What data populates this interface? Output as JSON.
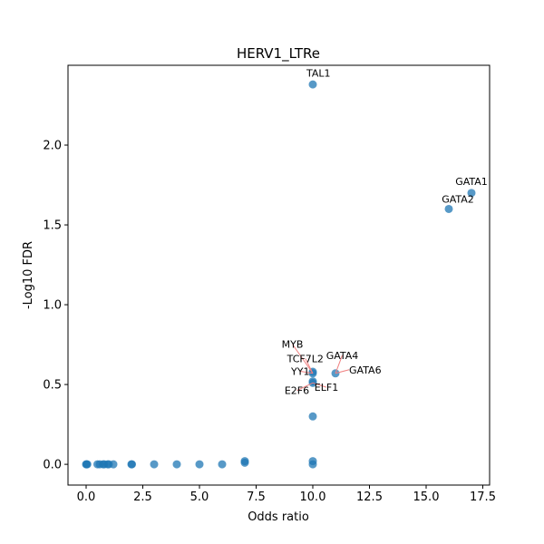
{
  "chart_data": {
    "type": "scatter",
    "title": "HERV1_LTRe",
    "xlabel": "Odds ratio",
    "ylabel": "-Log10 FDR",
    "xlim": [
      -0.8,
      17.8
    ],
    "ylim": [
      -0.13,
      2.5
    ],
    "xticks": [
      0.0,
      2.5,
      5.0,
      7.5,
      10.0,
      12.5,
      15.0,
      17.5
    ],
    "xtick_labels": [
      "0.0",
      "2.5",
      "5.0",
      "7.5",
      "10.0",
      "12.5",
      "15.0",
      "17.5"
    ],
    "yticks": [
      0.0,
      0.5,
      1.0,
      1.5,
      2.0
    ],
    "ytick_labels": [
      "0.0",
      "0.5",
      "1.0",
      "1.5",
      "2.0"
    ],
    "grid": false,
    "point_color": "#1f77b4",
    "arrow_color": "#f08080",
    "points": [
      {
        "x": 0.0,
        "y": 0.0
      },
      {
        "x": 0.02,
        "y": 0.0
      },
      {
        "x": 0.05,
        "y": 0.0
      },
      {
        "x": 0.5,
        "y": 0.0
      },
      {
        "x": 0.6,
        "y": 0.0
      },
      {
        "x": 0.75,
        "y": 0.0
      },
      {
        "x": 0.8,
        "y": 0.0
      },
      {
        "x": 0.95,
        "y": 0.0
      },
      {
        "x": 1.0,
        "y": 0.0
      },
      {
        "x": 1.2,
        "y": 0.0
      },
      {
        "x": 2.0,
        "y": 0.0
      },
      {
        "x": 2.02,
        "y": 0.0
      },
      {
        "x": 3.0,
        "y": 0.0
      },
      {
        "x": 4.0,
        "y": 0.0
      },
      {
        "x": 5.0,
        "y": 0.0
      },
      {
        "x": 6.0,
        "y": 0.0
      },
      {
        "x": 7.0,
        "y": 0.01
      },
      {
        "x": 7.0,
        "y": 0.02
      },
      {
        "x": 10.0,
        "y": 0.0
      },
      {
        "x": 10.0,
        "y": 0.02
      },
      {
        "x": 10.0,
        "y": 0.3
      },
      {
        "x": 10.0,
        "y": 0.51
      },
      {
        "x": 10.0,
        "y": 0.52
      },
      {
        "x": 10.0,
        "y": 0.57
      },
      {
        "x": 10.0,
        "y": 0.58
      },
      {
        "x": 11.0,
        "y": 0.57
      },
      {
        "x": 10.0,
        "y": 2.38
      },
      {
        "x": 16.0,
        "y": 1.6
      },
      {
        "x": 17.0,
        "y": 1.7
      }
    ],
    "annotations": [
      {
        "text": "TAL1",
        "x": 10.0,
        "y": 2.38,
        "tx": 10.25,
        "ty": 2.43,
        "anchor": "middle",
        "arrow": false
      },
      {
        "text": "GATA1",
        "x": 17.0,
        "y": 1.7,
        "tx": 17.0,
        "ty": 1.75,
        "anchor": "middle",
        "arrow": false
      },
      {
        "text": "GATA2",
        "x": 16.0,
        "y": 1.6,
        "tx": 16.4,
        "ty": 1.64,
        "anchor": "middle",
        "arrow": false
      },
      {
        "text": "MYB",
        "x": 10.0,
        "y": 0.57,
        "tx": 9.1,
        "ty": 0.73,
        "anchor": "middle",
        "arrow": true
      },
      {
        "text": "TCF7L2",
        "x": 10.0,
        "y": 0.57,
        "tx": 9.67,
        "ty": 0.64,
        "anchor": "middle",
        "arrow": true
      },
      {
        "text": "GATA4",
        "x": 11.0,
        "y": 0.57,
        "tx": 11.3,
        "ty": 0.66,
        "anchor": "middle",
        "arrow": true
      },
      {
        "text": "YY1",
        "x": 10.0,
        "y": 0.57,
        "tx": 9.45,
        "ty": 0.56,
        "anchor": "middle",
        "arrow": true
      },
      {
        "text": "GATA6",
        "x": 11.0,
        "y": 0.57,
        "tx": 11.6,
        "ty": 0.57,
        "anchor": "start",
        "arrow": true
      },
      {
        "text": "ELF1",
        "x": 10.0,
        "y": 0.51,
        "tx": 10.6,
        "ty": 0.46,
        "anchor": "middle",
        "arrow": true
      },
      {
        "text": "E2F6",
        "x": 10.0,
        "y": 0.51,
        "tx": 9.3,
        "ty": 0.44,
        "anchor": "middle",
        "arrow": true
      }
    ]
  }
}
